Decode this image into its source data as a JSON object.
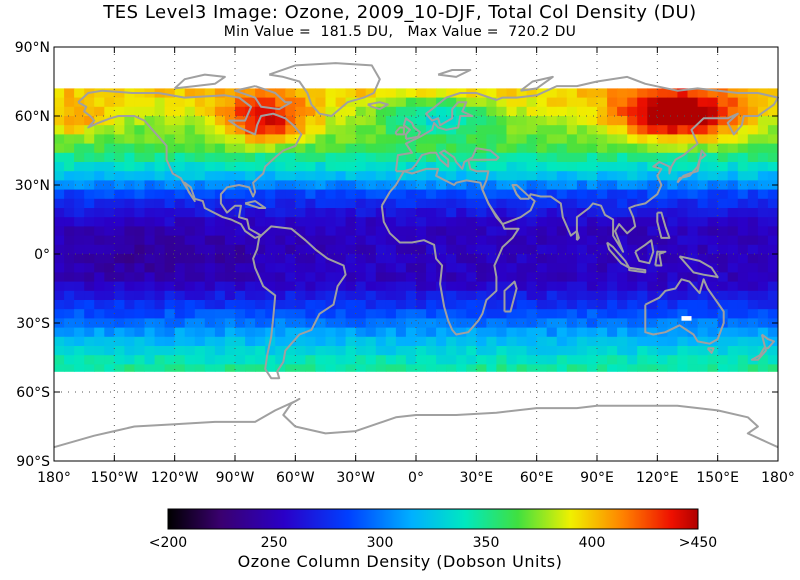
{
  "header": {
    "title": "TES Level3 Image: Ozone, 2009_10-DJF, Total Col Density (DU)",
    "subtitle": "Min Value =  181.5 DU,   Max Value =  720.2 DU"
  },
  "map": {
    "projection": "equirectangular",
    "lon_range": [
      -180,
      180
    ],
    "lat_range": [
      -90,
      90
    ],
    "data_lat_range": [
      -51,
      72
    ],
    "grid": "dotted",
    "lat_ticks": [
      {
        "value": 90,
        "label": "90°N"
      },
      {
        "value": 60,
        "label": "60°N"
      },
      {
        "value": 30,
        "label": "30°N"
      },
      {
        "value": 0,
        "label": "0°"
      },
      {
        "value": -30,
        "label": "30°S"
      },
      {
        "value": -60,
        "label": "60°S"
      },
      {
        "value": -90,
        "label": "90°S"
      }
    ],
    "lon_ticks": [
      {
        "value": -180,
        "label": "180°"
      },
      {
        "value": -150,
        "label": "150°W"
      },
      {
        "value": -120,
        "label": "120°W"
      },
      {
        "value": -90,
        "label": "90°W"
      },
      {
        "value": -60,
        "label": "60°W"
      },
      {
        "value": -30,
        "label": "30°W"
      },
      {
        "value": 0,
        "label": "0°"
      },
      {
        "value": 30,
        "label": "30°E"
      },
      {
        "value": 60,
        "label": "60°E"
      },
      {
        "value": 90,
        "label": "90°E"
      },
      {
        "value": 120,
        "label": "120°E"
      },
      {
        "value": 150,
        "label": "150°E"
      },
      {
        "value": 180,
        "label": "180°"
      }
    ],
    "coastline_color": "#a0a0a0"
  },
  "colorbar": {
    "title": "Ozone Column Density (Dobson Units)",
    "range": [
      200,
      450
    ],
    "labels": [
      {
        "value": 200,
        "label": "<200"
      },
      {
        "value": 250,
        "label": "250"
      },
      {
        "value": 300,
        "label": "300"
      },
      {
        "value": 350,
        "label": "350"
      },
      {
        "value": 400,
        "label": "400"
      },
      {
        "value": 450,
        "label": ">450"
      }
    ]
  }
}
